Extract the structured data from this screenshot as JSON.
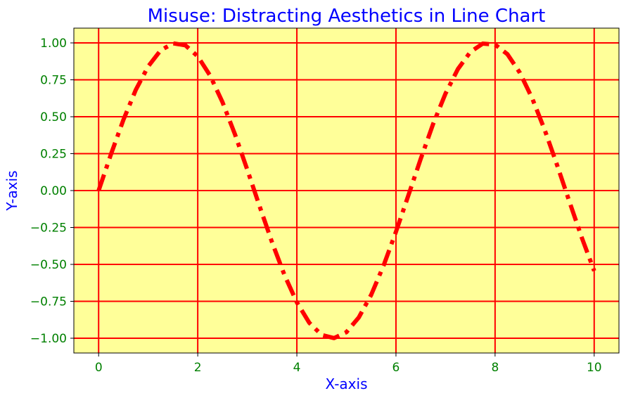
{
  "chart_data": {
    "type": "line",
    "title": "Misuse: Distracting Aesthetics in Line Chart",
    "xlabel": "X-axis",
    "ylabel": "Y-axis",
    "xlim": [
      -0.5,
      10.5
    ],
    "ylim": [
      -1.1,
      1.1
    ],
    "xticks": [
      0,
      2,
      4,
      6,
      8,
      10
    ],
    "xtick_labels": [
      "0",
      "2",
      "4",
      "6",
      "8",
      "10"
    ],
    "yticks": [
      1.0,
      0.75,
      0.5,
      0.25,
      0.0,
      -0.25,
      -0.5,
      -0.75,
      -1.0
    ],
    "ytick_labels": [
      "1.00",
      "0.75",
      "0.50",
      "0.25",
      "0.00",
      "−0.25",
      "−0.50",
      "−0.75",
      "−1.00"
    ],
    "grid": true,
    "series": [
      {
        "color": "#ff0000",
        "style": "dash-dot",
        "x": [
          0,
          0.25,
          0.5,
          0.75,
          1,
          1.25,
          1.5,
          1.75,
          2,
          2.25,
          2.5,
          2.75,
          3,
          3.25,
          3.5,
          3.75,
          4,
          4.25,
          4.5,
          4.75,
          5,
          5.25,
          5.5,
          5.75,
          6,
          6.25,
          6.5,
          6.75,
          7,
          7.25,
          7.5,
          7.75,
          8,
          8.25,
          8.5,
          8.75,
          9,
          9.25,
          9.5,
          9.75,
          10
        ],
        "y": [
          0,
          0.247,
          0.479,
          0.682,
          0.841,
          0.949,
          0.997,
          0.984,
          0.909,
          0.778,
          0.598,
          0.382,
          0.141,
          -0.108,
          -0.351,
          -0.572,
          -0.757,
          -0.895,
          -0.978,
          -0.999,
          -0.959,
          -0.859,
          -0.706,
          -0.508,
          -0.279,
          -0.033,
          0.215,
          0.451,
          0.657,
          0.823,
          0.938,
          0.995,
          0.989,
          0.923,
          0.798,
          0.624,
          0.412,
          0.174,
          -0.075,
          -0.319,
          -0.544
        ]
      }
    ],
    "colors": {
      "plot_background": "#ffff99",
      "grid": "#ff0000",
      "title": "#0000ff",
      "axis_label": "#0000ff",
      "tick_label": "#008000"
    }
  }
}
